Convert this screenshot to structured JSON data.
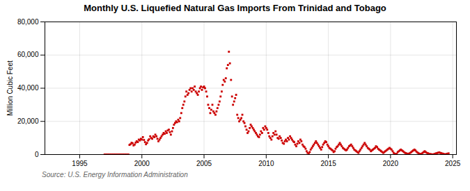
{
  "chart_data": {
    "type": "scatter",
    "title": "Monthly U.S. Liquefied Natural Gas Imports From Trinidad and Tobago",
    "y_label": "Million Cubic Feet",
    "caption": "Source: U.S. Energy Information Administration",
    "color": "#cc0000",
    "marker": "square",
    "grid": true,
    "xlim": [
      1992.2,
      2025.3
    ],
    "xticks": [
      1995,
      2000,
      2005,
      2010,
      2015,
      2020,
      2025
    ],
    "ylim": [
      0,
      80000
    ],
    "yticks": [
      0,
      {
        "value": 20000,
        "label": "20,000"
      },
      {
        "value": 40000,
        "label": "40,000"
      },
      {
        "value": 60000,
        "label": "60,000"
      },
      {
        "value": 80000,
        "label": "80,000"
      }
    ],
    "x": [
      1997.0,
      1997.08,
      1997.17,
      1997.25,
      1997.33,
      1997.42,
      1997.5,
      1997.58,
      1997.67,
      1997.75,
      1997.83,
      1997.92,
      1998.0,
      1998.08,
      1998.17,
      1998.25,
      1998.33,
      1998.42,
      1998.5,
      1998.58,
      1998.67,
      1998.75,
      1998.83,
      1998.92,
      1999.0,
      1999.08,
      1999.17,
      1999.25,
      1999.33,
      1999.42,
      1999.5,
      1999.58,
      1999.67,
      1999.75,
      1999.83,
      1999.92,
      2000.0,
      2000.08,
      2000.17,
      2000.25,
      2000.33,
      2000.42,
      2000.5,
      2000.58,
      2000.67,
      2000.75,
      2000.83,
      2000.92,
      2001.0,
      2001.08,
      2001.17,
      2001.25,
      2001.33,
      2001.42,
      2001.5,
      2001.58,
      2001.67,
      2001.75,
      2001.83,
      2001.92,
      2002.0,
      2002.08,
      2002.17,
      2002.25,
      2002.33,
      2002.42,
      2002.5,
      2002.58,
      2002.67,
      2002.75,
      2002.83,
      2002.92,
      2003.0,
      2003.08,
      2003.17,
      2003.25,
      2003.33,
      2003.42,
      2003.5,
      2003.58,
      2003.67,
      2003.75,
      2003.83,
      2003.92,
      2004.0,
      2004.08,
      2004.17,
      2004.25,
      2004.33,
      2004.42,
      2004.5,
      2004.58,
      2004.67,
      2004.75,
      2004.83,
      2004.92,
      2005.0,
      2005.08,
      2005.17,
      2005.25,
      2005.33,
      2005.42,
      2005.5,
      2005.58,
      2005.67,
      2005.75,
      2005.83,
      2005.92,
      2006.0,
      2006.08,
      2006.17,
      2006.25,
      2006.33,
      2006.42,
      2006.5,
      2006.58,
      2006.67,
      2006.75,
      2006.83,
      2006.92,
      2007.0,
      2007.08,
      2007.17,
      2007.25,
      2007.33,
      2007.42,
      2007.5,
      2007.58,
      2007.67,
      2007.75,
      2007.83,
      2007.92,
      2008.0,
      2008.08,
      2008.17,
      2008.25,
      2008.33,
      2008.42,
      2008.5,
      2008.58,
      2008.67,
      2008.75,
      2008.83,
      2008.92,
      2009.0,
      2009.08,
      2009.17,
      2009.25,
      2009.33,
      2009.42,
      2009.5,
      2009.58,
      2009.67,
      2009.75,
      2009.83,
      2009.92,
      2010.0,
      2010.08,
      2010.17,
      2010.25,
      2010.33,
      2010.42,
      2010.5,
      2010.58,
      2010.67,
      2010.75,
      2010.83,
      2010.92,
      2011.0,
      2011.08,
      2011.17,
      2011.25,
      2011.33,
      2011.42,
      2011.5,
      2011.58,
      2011.67,
      2011.75,
      2011.83,
      2011.92,
      2012.0,
      2012.08,
      2012.17,
      2012.25,
      2012.33,
      2012.42,
      2012.5,
      2012.58,
      2012.67,
      2012.75,
      2012.83,
      2012.92,
      2013.0,
      2013.08,
      2013.17,
      2013.25,
      2013.33,
      2013.42,
      2013.5,
      2013.58,
      2013.67,
      2013.75,
      2013.83,
      2013.92,
      2014.0,
      2014.08,
      2014.17,
      2014.25,
      2014.33,
      2014.42,
      2014.5,
      2014.58,
      2014.67,
      2014.75,
      2014.83,
      2014.92,
      2015.0,
      2015.08,
      2015.17,
      2015.25,
      2015.33,
      2015.42,
      2015.5,
      2015.58,
      2015.67,
      2015.75,
      2015.83,
      2015.92,
      2016.0,
      2016.08,
      2016.17,
      2016.25,
      2016.33,
      2016.42,
      2016.5,
      2016.58,
      2016.67,
      2016.75,
      2016.83,
      2016.92,
      2017.0,
      2017.08,
      2017.17,
      2017.25,
      2017.33,
      2017.42,
      2017.5,
      2017.58,
      2017.67,
      2017.75,
      2017.83,
      2017.92,
      2018.0,
      2018.08,
      2018.17,
      2018.25,
      2018.33,
      2018.42,
      2018.5,
      2018.58,
      2018.67,
      2018.75,
      2018.83,
      2018.92,
      2019.0,
      2019.08,
      2019.17,
      2019.25,
      2019.33,
      2019.42,
      2019.5,
      2019.58,
      2019.67,
      2019.75,
      2019.83,
      2019.92,
      2020.0,
      2020.08,
      2020.17,
      2020.25,
      2020.33,
      2020.42,
      2020.5,
      2020.58,
      2020.67,
      2020.75,
      2020.83,
      2020.92,
      2021.0,
      2021.08,
      2021.17,
      2021.25,
      2021.33,
      2021.42,
      2021.5,
      2021.58,
      2021.67,
      2021.75,
      2021.83,
      2021.92,
      2022.0,
      2022.08,
      2022.17,
      2022.25,
      2022.33,
      2022.42,
      2022.5,
      2022.58,
      2022.67,
      2022.75,
      2022.83,
      2022.92,
      2023.0,
      2023.08,
      2023.17,
      2023.25,
      2023.33,
      2023.42,
      2023.5,
      2023.58,
      2023.67,
      2023.75,
      2023.83,
      2023.92,
      2024.0,
      2024.08,
      2024.17,
      2024.25,
      2024.33,
      2024.42,
      2024.5,
      2024.58,
      2024.67
    ],
    "values": [
      0,
      0,
      0,
      0,
      0,
      0,
      0,
      0,
      0,
      0,
      0,
      0,
      0,
      0,
      0,
      0,
      0,
      0,
      0,
      0,
      0,
      0,
      0,
      0,
      5800,
      6200,
      7100,
      6800,
      5500,
      6000,
      7200,
      8000,
      7500,
      9000,
      8500,
      9500,
      9000,
      10500,
      8800,
      7500,
      6200,
      7000,
      8500,
      9200,
      11000,
      10000,
      9500,
      11000,
      10500,
      12000,
      11000,
      9500,
      8000,
      9000,
      10000,
      11000,
      12000,
      13000,
      12500,
      14000,
      13000,
      14500,
      15000,
      13500,
      12000,
      14000,
      16000,
      18000,
      19000,
      20000,
      19500,
      21000,
      20000,
      22000,
      25000,
      28000,
      30000,
      32000,
      35000,
      38000,
      36000,
      37000,
      39000,
      40000,
      38000,
      40000,
      39000,
      41000,
      38000,
      37000,
      36000,
      38000,
      40000,
      41000,
      39000,
      40500,
      41000,
      40000,
      38000,
      35000,
      30000,
      28000,
      25000,
      27000,
      30000,
      26000,
      25000,
      24000,
      26000,
      28000,
      30000,
      32000,
      35000,
      38000,
      42000,
      45000,
      44000,
      46000,
      52000,
      54000,
      62000,
      55000,
      45000,
      35000,
      30000,
      32000,
      34000,
      36000,
      24000,
      22000,
      20000,
      21000,
      22000,
      24000,
      20000,
      19000,
      17000,
      15000,
      13000,
      14000,
      16000,
      18000,
      17000,
      16000,
      15000,
      14000,
      13000,
      12000,
      11000,
      10500,
      12000,
      14000,
      13000,
      16000,
      15000,
      17000,
      16000,
      15000,
      13000,
      11000,
      10000,
      9000,
      11000,
      13000,
      12000,
      14000,
      12000,
      10000,
      9500,
      11000,
      10000,
      8500,
      7000,
      6500,
      8000,
      9000,
      8000,
      10000,
      9000,
      11000,
      10000,
      9000,
      8000,
      7500,
      6000,
      5000,
      6500,
      8000,
      7000,
      9000,
      8000,
      6000,
      5000,
      4500,
      3500,
      2000,
      1000,
      500,
      1500,
      3000,
      4000,
      5000,
      6000,
      7000,
      8000,
      7000,
      6000,
      5000,
      4000,
      3000,
      4500,
      6000,
      7000,
      8000,
      7500,
      6000,
      5000,
      4000,
      3500,
      3000,
      2500,
      1500,
      2000,
      3500,
      4500,
      5000,
      6000,
      7000,
      6000,
      5000,
      4000,
      3500,
      3000,
      2500,
      3000,
      4000,
      5000,
      5500,
      6000,
      5000,
      4000,
      3000,
      2500,
      2000,
      1500,
      1000,
      2000,
      3000,
      4000,
      5000,
      6000,
      7000,
      6000,
      5000,
      4000,
      3500,
      3000,
      2000,
      2500,
      3000,
      3500,
      4000,
      5000,
      4500,
      3500,
      3000,
      2500,
      2000,
      1500,
      1000,
      1500,
      2000,
      2500,
      3000,
      3500,
      4000,
      3500,
      3000,
      2000,
      1000,
      500,
      200,
      500,
      1500,
      2000,
      2500,
      3000,
      2500,
      2000,
      1500,
      1000,
      800,
      500,
      300,
      600,
      1000,
      1500,
      2000,
      2500,
      3000,
      2500,
      1800,
      1200,
      800,
      400,
      200,
      500,
      1000,
      1500,
      2000,
      1500,
      1000,
      800,
      500,
      300,
      200,
      100,
      50,
      200,
      500,
      700,
      900,
      1100,
      1300,
      1000,
      800,
      600,
      400,
      200,
      100,
      300,
      500,
      700
    ]
  }
}
